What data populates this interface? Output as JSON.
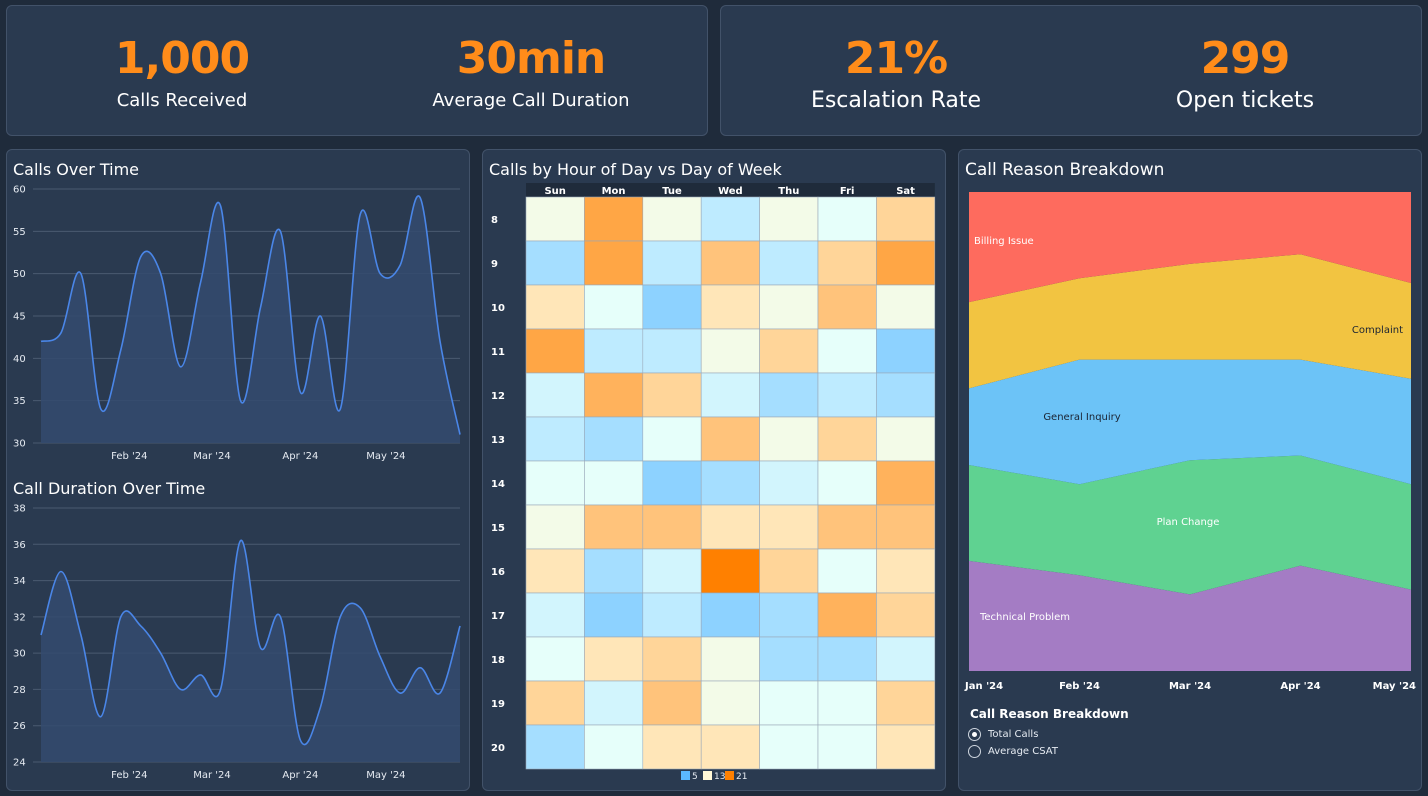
{
  "kpis": [
    {
      "value": "1,000",
      "label": "Calls Received"
    },
    {
      "value": "30min",
      "label": "Average Call Duration"
    },
    {
      "value": "21%",
      "label": "Escalation Rate"
    },
    {
      "value": "299",
      "label": "Open tickets"
    }
  ],
  "colors": {
    "accent": "#ff8c1a",
    "line": "#4a86e8"
  },
  "chart_data": [
    {
      "type": "line",
      "title": "Calls Over Time",
      "x": [
        "2024-01-01",
        "2024-01-08",
        "2024-01-15",
        "2024-01-22",
        "2024-01-29",
        "2024-02-05",
        "2024-02-12",
        "2024-02-19",
        "2024-02-26",
        "2024-03-04",
        "2024-03-11",
        "2024-03-18",
        "2024-03-25",
        "2024-04-01",
        "2024-04-08",
        "2024-04-15",
        "2024-04-22",
        "2024-04-29",
        "2024-05-06",
        "2024-05-13",
        "2024-05-20",
        "2024-05-27"
      ],
      "values": [
        42,
        43,
        50,
        34,
        41,
        52,
        50,
        39,
        49,
        58,
        35,
        46,
        55,
        36,
        45,
        34,
        57,
        50,
        51,
        59,
        42,
        31
      ],
      "xticks": [
        "Feb '24",
        "Mar '24",
        "Apr '24",
        "May '24"
      ],
      "yticks": [
        30,
        35,
        40,
        45,
        50,
        55,
        60
      ],
      "ylim": [
        30,
        60
      ]
    },
    {
      "type": "line",
      "title": "Call Duration Over Time",
      "x": [
        "2024-01-01",
        "2024-01-08",
        "2024-01-15",
        "2024-01-22",
        "2024-01-29",
        "2024-02-05",
        "2024-02-12",
        "2024-02-19",
        "2024-02-26",
        "2024-03-04",
        "2024-03-11",
        "2024-03-18",
        "2024-03-25",
        "2024-04-01",
        "2024-04-08",
        "2024-04-15",
        "2024-04-22",
        "2024-04-29",
        "2024-05-06",
        "2024-05-13",
        "2024-05-20",
        "2024-05-27"
      ],
      "values": [
        31,
        34.5,
        31,
        26.5,
        32,
        31.5,
        30,
        28,
        28.8,
        28,
        36.2,
        30.3,
        32,
        25.2,
        27,
        32,
        32.5,
        29.8,
        27.8,
        29.2,
        27.8,
        31.5
      ],
      "xticks": [
        "Feb '24",
        "Mar '24",
        "Apr '24",
        "May '24"
      ],
      "yticks": [
        24,
        26,
        28,
        30,
        32,
        34,
        36,
        38
      ],
      "ylim": [
        24,
        38
      ]
    },
    {
      "type": "heatmap",
      "title": "Calls by Hour of Day vs Day of Week",
      "columns": [
        "Sun",
        "Mon",
        "Tue",
        "Wed",
        "Thu",
        "Fri",
        "Sat"
      ],
      "rows": [
        "8",
        "9",
        "10",
        "11",
        "12",
        "13",
        "14",
        "15",
        "16",
        "17",
        "18",
        "19",
        "20"
      ],
      "values": [
        [
          12,
          18,
          12,
          9,
          12,
          11,
          15
        ],
        [
          8,
          18,
          9,
          16,
          9,
          15,
          18
        ],
        [
          14,
          11,
          7,
          14,
          12,
          16,
          12
        ],
        [
          18,
          9,
          9,
          12,
          15,
          11,
          7
        ],
        [
          10,
          17,
          15,
          10,
          8,
          9,
          8
        ],
        [
          9,
          8,
          11,
          16,
          12,
          15,
          12
        ],
        [
          11,
          11,
          7,
          8,
          10,
          11,
          17
        ],
        [
          12,
          16,
          16,
          14,
          14,
          16,
          16
        ],
        [
          14,
          8,
          10,
          21,
          15,
          11,
          14
        ],
        [
          10,
          7,
          9,
          7,
          8,
          17,
          15
        ],
        [
          11,
          14,
          15,
          12,
          8,
          8,
          10
        ],
        [
          15,
          10,
          16,
          12,
          11,
          11,
          15
        ],
        [
          8,
          11,
          14,
          14,
          11,
          11,
          14
        ]
      ],
      "legend": [
        "5",
        "13",
        "21"
      ],
      "scale": [
        5,
        13,
        21
      ]
    },
    {
      "type": "area",
      "title": "Call Reason Breakdown",
      "categories": [
        "Jan '24",
        "Feb '24",
        "Mar '24",
        "Apr '24",
        "May '24"
      ],
      "series": [
        {
          "name": "Technical Problem",
          "values": [
            23,
            20,
            16,
            22,
            17
          ],
          "color": "#a47cc4"
        },
        {
          "name": "Plan Change",
          "values": [
            20,
            19,
            28,
            23,
            22
          ],
          "color": "#5fd291"
        },
        {
          "name": "General Inquiry",
          "values": [
            16,
            26,
            21,
            20,
            22
          ],
          "color": "#6cc3f7"
        },
        {
          "name": "Complaint",
          "values": [
            18,
            17,
            20,
            22,
            20
          ],
          "color": "#f2c441"
        },
        {
          "name": "Billing Issue",
          "values": [
            23,
            18,
            15,
            13,
            19
          ],
          "color": "#fe6b5e"
        }
      ],
      "stacked": "percent",
      "options_title": "Call Reason Breakdown",
      "options": [
        "Total Calls",
        "Average CSAT"
      ],
      "selected_option": "Total Calls"
    }
  ]
}
